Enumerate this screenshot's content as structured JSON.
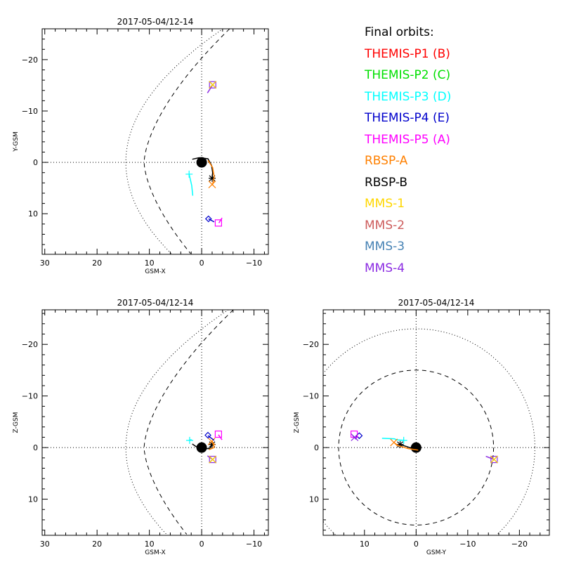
{
  "chart_data": [
    {
      "type": "scatter",
      "panel": "top-left",
      "title": "2017-05-04/12-14",
      "xlabel": "GSM-X",
      "ylabel": "Y-GSM",
      "xlim": [
        30.5,
        -12.75
      ],
      "ylim": [
        -26,
        17.9
      ],
      "xticks": [
        30,
        20,
        10,
        0,
        -10
      ],
      "yticks": [
        -20,
        -10,
        0,
        10
      ],
      "xtick_labels": [
        "30",
        "20",
        "10",
        "0",
        "−10"
      ],
      "ytick_labels": [
        "−20",
        "−10",
        "0",
        "10"
      ],
      "earth": {
        "x": 0,
        "y": 0,
        "radius": 1
      },
      "boundaries": [
        {
          "name": "magnetopause",
          "style": "dashed",
          "nose": 11,
          "flank": 22
        },
        {
          "name": "bow-shock",
          "style": "dotted",
          "nose": 14.5,
          "flank": 34
        }
      ],
      "tracks": [
        {
          "name": "THEMIS-P3 (D)",
          "color": "#00ffff",
          "points": [
            [
              2.4,
              2.3
            ],
            [
              1.9,
              4.5
            ],
            [
              1.7,
              6.5
            ]
          ],
          "marker": "plus",
          "marker_at": [
            2.4,
            2.3
          ]
        },
        {
          "name": "RBSP-B",
          "color": "#000000",
          "points": [
            [
              1.8,
              -0.6
            ],
            [
              0.5,
              -0.9
            ],
            [
              -1.2,
              -0.7
            ],
            [
              -1.9,
              0.6
            ],
            [
              -2.1,
              2.0
            ],
            [
              -2.0,
              3.1
            ]
          ],
          "marker": "asterisk",
          "marker_at": [
            -2.0,
            3.1
          ]
        },
        {
          "name": "RBSP-A",
          "color": "#ff8000",
          "points": [
            [
              -1.2,
              -0.4
            ],
            [
              -2.1,
              1.0
            ],
            [
              -2.4,
              2.8
            ],
            [
              -2.1,
              4.3
            ]
          ],
          "marker": "x",
          "marker_at": [
            -2.0,
            4.3
          ]
        },
        {
          "name": "THEMIS-P4 (E)",
          "color": "#0000cc",
          "points": [
            [
              -1.3,
              11.0
            ],
            [
              -2.4,
              11.6
            ]
          ],
          "marker": "diamond",
          "marker_at": [
            -1.3,
            11.0
          ]
        },
        {
          "name": "THEMIS-P5 (A)",
          "color": "#ff00ff",
          "points": [
            [
              -3.3,
              11.8
            ],
            [
              -3.9,
              10.8
            ]
          ],
          "marker": "square",
          "marker_at": [
            -3.2,
            11.8
          ]
        },
        {
          "name": "MMS-4",
          "color": "#8b2be2",
          "points": [
            [
              -1.1,
              -13.5
            ],
            [
              -2.1,
              -15.1
            ]
          ],
          "marker": "square",
          "marker_at": [
            -2.1,
            -15.1
          ]
        },
        {
          "name": "MMS-3",
          "color": "#4682b4",
          "points": [
            [
              -2.1,
              -15.1
            ]
          ],
          "marker": "x",
          "marker_at": [
            -2.1,
            -15.1
          ]
        },
        {
          "name": "MMS-2",
          "color": "#cd5c5c",
          "points": [
            [
              -2.1,
              -15.1
            ]
          ],
          "marker": "x",
          "marker_at": [
            -2.1,
            -15.1
          ]
        },
        {
          "name": "MMS-1",
          "color": "#ffd700",
          "points": [
            [
              -2.1,
              -15.1
            ]
          ],
          "marker": "x",
          "marker_at": [
            -2.1,
            -15.1
          ]
        }
      ]
    },
    {
      "type": "scatter",
      "panel": "bottom-left",
      "title": "2017-05-04/12-14",
      "xlabel": "GSM-X",
      "ylabel": "Z-GSM",
      "xlim": [
        30.5,
        -12.75
      ],
      "ylim": [
        -26.7,
        17
      ],
      "xticks": [
        30,
        20,
        10,
        0,
        -10
      ],
      "yticks": [
        10,
        0,
        -10,
        -20
      ],
      "xtick_labels": [
        "30",
        "20",
        "10",
        "0",
        "−10"
      ],
      "ytick_labels": [
        "10",
        "0",
        "−10",
        "−20"
      ],
      "earth": {
        "x": 0,
        "y": 0,
        "radius": 1
      },
      "tracks": [
        {
          "name": "THEMIS-P3 (D)",
          "color": "#00ffff",
          "points": [
            [
              2.3,
              -1.5
            ],
            [
              1.9,
              -1.5
            ]
          ],
          "marker": "plus",
          "marker_at": [
            2.3,
            -1.4
          ]
        },
        {
          "name": "RBSP-B",
          "color": "#000000",
          "points": [
            [
              1.8,
              -0.7
            ],
            [
              0.5,
              0.2
            ],
            [
              -1.5,
              0.2
            ],
            [
              -2.0,
              -0.6
            ]
          ],
          "marker": "asterisk",
          "marker_at": [
            -2.0,
            -0.6
          ]
        },
        {
          "name": "RBSP-A",
          "color": "#ff8000",
          "points": [
            [
              -1.4,
              0.4
            ],
            [
              -2.4,
              0.0
            ],
            [
              -2.0,
              -1.3
            ]
          ],
          "marker": "x",
          "marker_at": [
            -1.9,
            -1.2
          ]
        },
        {
          "name": "THEMIS-P4 (E)",
          "color": "#0000cc",
          "points": [
            [
              -1.2,
              -2.3
            ],
            [
              -2.4,
              -1.4
            ]
          ],
          "marker": "diamond",
          "marker_at": [
            -1.2,
            -2.4
          ]
        },
        {
          "name": "THEMIS-P5 (A)",
          "color": "#ff00ff",
          "points": [
            [
              -3.2,
              -2.5
            ],
            [
              -3.9,
              -1.5
            ]
          ],
          "marker": "square",
          "marker_at": [
            -3.2,
            -2.6
          ]
        },
        {
          "name": "MMS-4",
          "color": "#8b2be2",
          "points": [
            [
              -1.1,
              1.6
            ],
            [
              -2.1,
              2.3
            ]
          ],
          "marker": "square",
          "marker_at": [
            -2.1,
            2.3
          ]
        },
        {
          "name": "MMS-3",
          "color": "#4682b4",
          "points": [
            [
              -2.1,
              2.3
            ]
          ],
          "marker": "x",
          "marker_at": [
            -2.1,
            2.3
          ]
        },
        {
          "name": "MMS-2",
          "color": "#cd5c5c",
          "points": [
            [
              -2.1,
              2.3
            ]
          ],
          "marker": "x",
          "marker_at": [
            -2.1,
            2.3
          ]
        },
        {
          "name": "MMS-1",
          "color": "#ffd700",
          "points": [
            [
              -2.1,
              2.3
            ]
          ],
          "marker": "x",
          "marker_at": [
            -2.1,
            2.3
          ]
        }
      ]
    },
    {
      "type": "scatter",
      "panel": "bottom-right",
      "title": "2017-05-04/12-14",
      "xlabel": "GSM-Y",
      "ylabel": "Z-GSM",
      "xlim": [
        18,
        -25.8
      ],
      "ylim": [
        -26.7,
        17
      ],
      "xticks": [
        10,
        0,
        -10,
        -20
      ],
      "yticks": [
        10,
        0,
        -10,
        -20
      ],
      "xtick_labels": [
        "10",
        "0",
        "−10",
        "−20"
      ],
      "ytick_labels": [
        "10",
        "0",
        "−10",
        "−20"
      ],
      "earth": {
        "x": 0,
        "y": 0,
        "radius": 1
      },
      "boundaries": [
        {
          "name": "magnetopause",
          "style": "dashed",
          "radius": 15
        },
        {
          "name": "bow-shock",
          "style": "dotted",
          "radius": 23
        }
      ],
      "tracks": [
        {
          "name": "THEMIS-P3 (D)",
          "color": "#00ffff",
          "points": [
            [
              6.6,
              -1.8
            ],
            [
              4.2,
              -1.7
            ],
            [
              3.8,
              -1.5
            ],
            [
              2.4,
              -1.4
            ]
          ],
          "marker": "plus",
          "marker_at": [
            2.4,
            -1.4
          ]
        },
        {
          "name": "RBSP-B",
          "color": "#000000",
          "points": [
            [
              0.4,
              0.3
            ],
            [
              1.5,
              -0.1
            ],
            [
              3.1,
              -0.6
            ]
          ],
          "marker": "asterisk",
          "marker_at": [
            3.1,
            -0.6
          ]
        },
        {
          "name": "RBSP-A",
          "color": "#ff8000",
          "points": [
            [
              -0.4,
              0.5
            ],
            [
              1.5,
              0.2
            ],
            [
              3.5,
              -0.4
            ],
            [
              4.3,
              -1.0
            ]
          ],
          "marker": "x",
          "marker_at": [
            4.3,
            -1.0
          ]
        },
        {
          "name": "THEMIS-P4 (E)",
          "color": "#0000cc",
          "points": [
            [
              11.7,
              -1.7
            ],
            [
              11.4,
              -2.3
            ]
          ],
          "marker": "diamond",
          "marker_at": [
            11.0,
            -2.3
          ]
        },
        {
          "name": "THEMIS-P5 (A)",
          "color": "#ff00ff",
          "points": [
            [
              12.0,
              -2.6
            ]
          ],
          "marker": "square",
          "marker_at": [
            12.0,
            -2.6
          ]
        },
        {
          "name": "MMS-4",
          "color": "#8b2be2",
          "points": [
            [
              12.3,
              -2.3
            ],
            [
              11.6,
              -1.6
            ]
          ],
          "marker": "x",
          "marker_at": [
            11.9,
            -2.0
          ]
        },
        {
          "name": "MMS-4 (dusk)",
          "color": "#8b2be2",
          "points": [
            [
              -13.5,
              1.7
            ],
            [
              -15.1,
              2.3
            ]
          ],
          "marker": "square",
          "marker_at": [
            -15.1,
            2.3
          ]
        },
        {
          "name": "MMS-3",
          "color": "#4682b4",
          "points": [
            [
              -15.1,
              2.3
            ]
          ],
          "marker": "x",
          "marker_at": [
            -15.1,
            2.3
          ]
        },
        {
          "name": "MMS-2",
          "color": "#cd5c5c",
          "points": [
            [
              -15.1,
              2.3
            ]
          ],
          "marker": "x",
          "marker_at": [
            -15.1,
            2.3
          ]
        },
        {
          "name": "MMS-1",
          "color": "#ffd700",
          "points": [
            [
              -15.1,
              2.3
            ]
          ],
          "marker": "x",
          "marker_at": [
            -15.1,
            2.3
          ]
        }
      ]
    }
  ],
  "legend": {
    "title": "Final orbits:",
    "placement": "top-right",
    "entries": [
      {
        "label": "THEMIS-P1 (B)",
        "color": "#ff0000"
      },
      {
        "label": "THEMIS-P2 (C)",
        "color": "#00e000"
      },
      {
        "label": "THEMIS-P3 (D)",
        "color": "#00ffff"
      },
      {
        "label": "THEMIS-P4 (E)",
        "color": "#0000cc"
      },
      {
        "label": "THEMIS-P5 (A)",
        "color": "#ff00ff"
      },
      {
        "label": "RBSP-A",
        "color": "#ff8000"
      },
      {
        "label": "RBSP-B",
        "color": "#000000"
      },
      {
        "label": "MMS-1",
        "color": "#ffd700"
      },
      {
        "label": "MMS-2",
        "color": "#cd5c5c"
      },
      {
        "label": "MMS-3",
        "color": "#4682b4"
      },
      {
        "label": "MMS-4",
        "color": "#8b2be2"
      }
    ]
  }
}
